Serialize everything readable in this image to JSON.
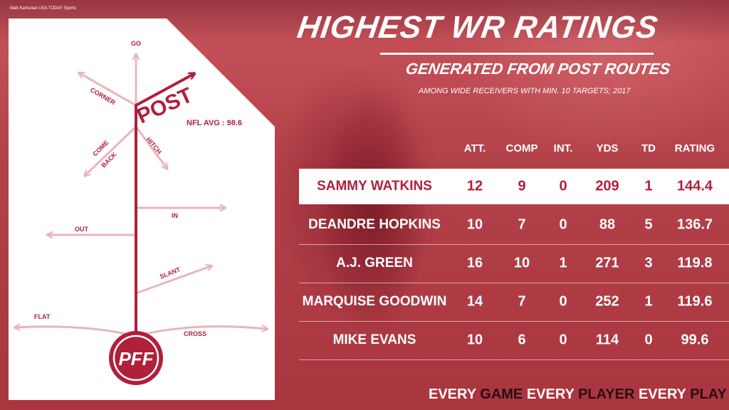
{
  "credit": "Matt Kartozian USA TODAY Sports",
  "title": "HIGHEST WR RATINGS",
  "subtitle": "GENERATED FROM POST ROUTES",
  "note": "AMONG WIDE RECEIVERS WITH MIN. 10 TARGETS; 2017",
  "route_tree": {
    "routes": [
      "GO",
      "CORNER",
      "POST",
      "COME",
      "BACK",
      "HITCH",
      "IN",
      "OUT",
      "SLANT",
      "FLAT",
      "CROSS"
    ],
    "highlight": "POST",
    "nfl_avg": "NFL AVG :  98.6",
    "logo": "PFF"
  },
  "table": {
    "headers": [
      "ATT.",
      "COMP",
      "INT.",
      "YDS",
      "TD",
      "RATING"
    ],
    "rows": [
      {
        "name": "SAMMY WATKINS",
        "att": "12",
        "comp": "9",
        "int": "0",
        "yds": "209",
        "td": "1",
        "rating": "144.4"
      },
      {
        "name": "DEANDRE HOPKINS",
        "att": "10",
        "comp": "7",
        "int": "0",
        "yds": "88",
        "td": "5",
        "rating": "136.7"
      },
      {
        "name": "A.J. GREEN",
        "att": "16",
        "comp": "10",
        "int": "1",
        "yds": "271",
        "td": "3",
        "rating": "119.8"
      },
      {
        "name": "MARQUISE GOODWIN",
        "att": "14",
        "comp": "7",
        "int": "0",
        "yds": "252",
        "td": "1",
        "rating": "119.6"
      },
      {
        "name": "MIKE EVANS",
        "att": "10",
        "comp": "6",
        "int": "0",
        "yds": "114",
        "td": "0",
        "rating": "99.6"
      }
    ]
  },
  "tagline": {
    "w1": "EVERY",
    "w2": "GAME",
    "w3": "EVERY",
    "w4": "PLAYER",
    "w5": "EVERY",
    "w6": "PLAY"
  },
  "colors": {
    "accent": "#b0203b",
    "route_light": "#e8b5bc",
    "background": "#b73a44",
    "panel": "#ffffff",
    "tagline_dark": "#2a0d12",
    "tagline_light": "#ffffff"
  }
}
